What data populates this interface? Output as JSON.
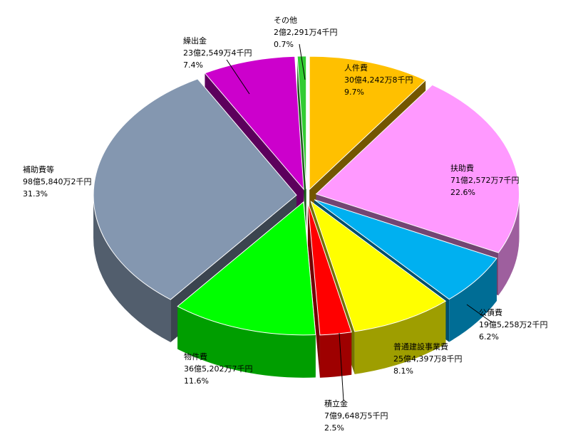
{
  "chart_data": {
    "type": "pie",
    "title": "",
    "unit": "",
    "slices": [
      {
        "label": "人件費",
        "amount": "30億4,242万8千円",
        "percent": "9.7%",
        "value": 9.7,
        "color": "#FFC000"
      },
      {
        "label": "扶助費",
        "amount": "71億2,572万7千円",
        "percent": "22.6%",
        "value": 22.6,
        "color": "#FF99FF"
      },
      {
        "label": "公債費",
        "amount": "19億5,258万2千円",
        "percent": "6.2%",
        "value": 6.2,
        "color": "#00B0F0"
      },
      {
        "label": "普通建設事業費",
        "amount": "25億4,397万8千円",
        "percent": "8.1%",
        "value": 8.1,
        "color": "#FFFF00"
      },
      {
        "label": "積立金",
        "amount": "7億9,648万5千円",
        "percent": "2.5%",
        "value": 2.5,
        "color": "#FF0000"
      },
      {
        "label": "物件費",
        "amount": "36億5,202万7千円",
        "percent": "11.6%",
        "value": 11.6,
        "color": "#00FF00"
      },
      {
        "label": "補助費等",
        "amount": "98億5,840万2千円",
        "percent": "31.3%",
        "value": 31.3,
        "color": "#8497B0"
      },
      {
        "label": "繰出金",
        "amount": "23億2,549万4千円",
        "percent": "7.4%",
        "value": 7.4,
        "color": "#CC00CC"
      },
      {
        "label": "その他",
        "amount": "2億2,291万4千円",
        "percent": "0.7%",
        "value": 0.7,
        "color": "#33CC33"
      }
    ],
    "exploded": true,
    "three_d": true,
    "legend": "none"
  }
}
